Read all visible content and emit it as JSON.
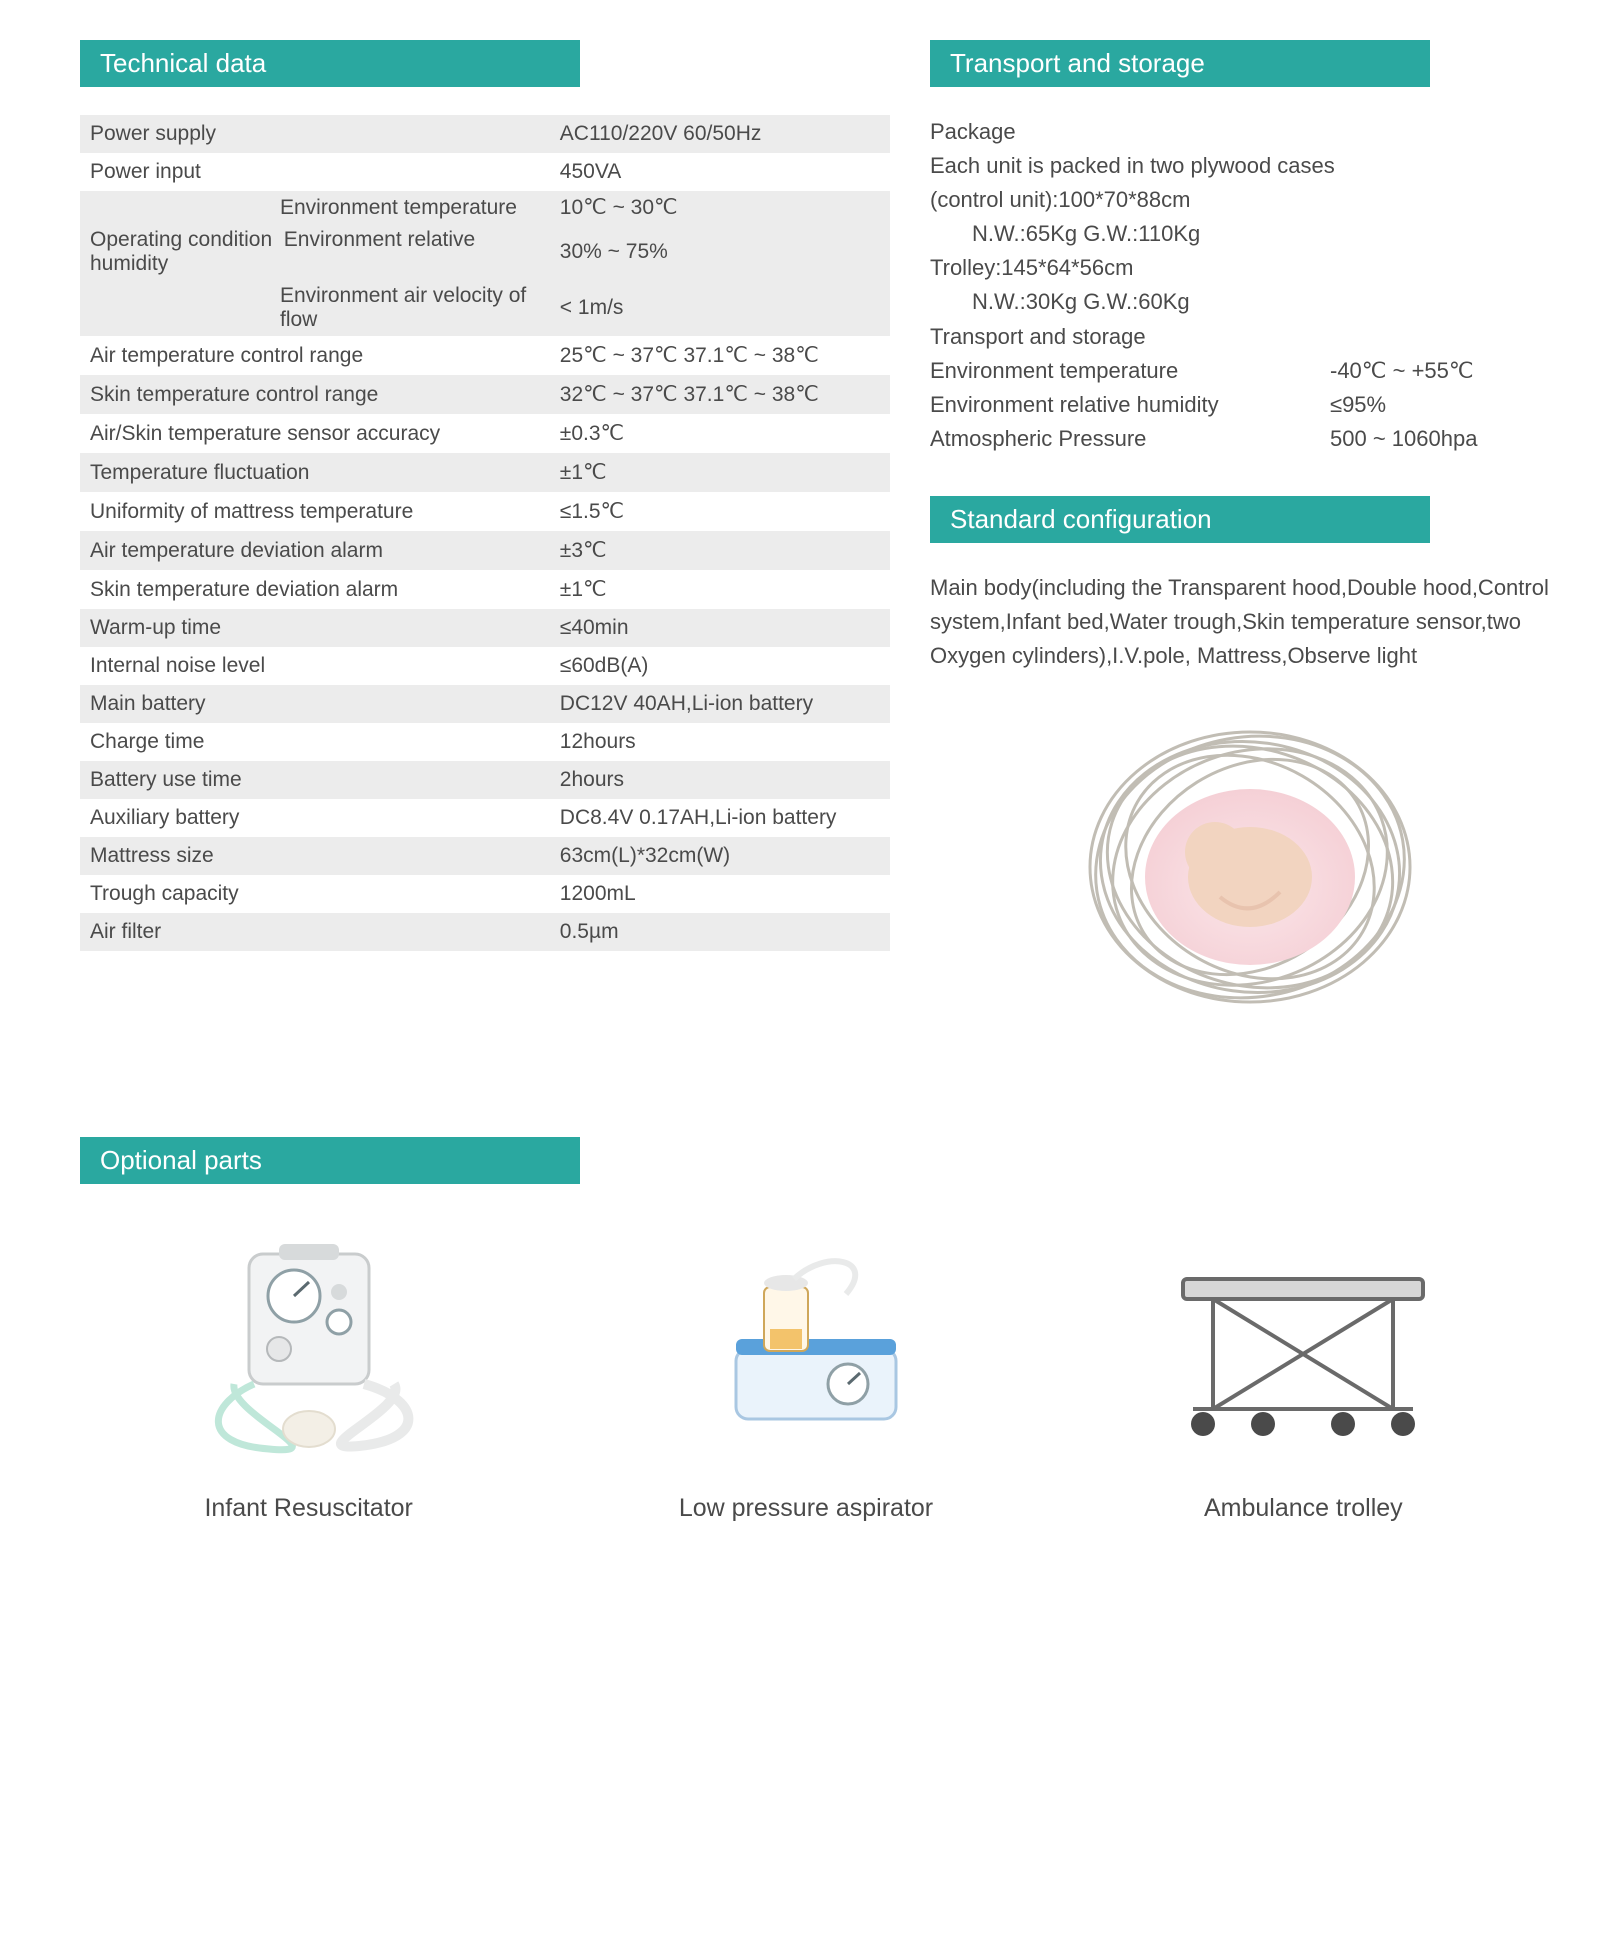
{
  "colors": {
    "header_bg": "#2aa8a0",
    "header_text": "#ffffff",
    "row_alt_bg": "#ececec",
    "text": "#4a4a4a",
    "page_bg": "#ffffff"
  },
  "technical": {
    "header": "Technical data",
    "rows": [
      {
        "label": "Power supply",
        "value": "AC110/220V  60/50Hz",
        "alt": true
      },
      {
        "label": "Power input",
        "value": "450VA",
        "alt": false
      }
    ],
    "operating_condition_label": "Operating condition",
    "operating_condition_rows": [
      {
        "sub": "Environment temperature",
        "value": "10℃ ~ 30℃"
      },
      {
        "sub": "Environment relative humidity",
        "value": "30% ~ 75%"
      },
      {
        "sub": "Environment air velocity of flow",
        "value": "< 1m/s"
      }
    ],
    "rows2": [
      {
        "label": "Air temperature control range",
        "value": "25℃ ~ 37℃  37.1℃ ~ 38℃",
        "alt": false
      },
      {
        "label": "Skin temperature control range",
        "value": "32℃ ~ 37℃  37.1℃ ~ 38℃",
        "alt": true
      },
      {
        "label": "Air/Skin temperature sensor accuracy",
        "value": "±0.3℃",
        "alt": false
      },
      {
        "label": "Temperature fluctuation",
        "value": "±1℃",
        "alt": true
      },
      {
        "label": "Uniformity of mattress temperature",
        "value": "≤1.5℃",
        "alt": false
      },
      {
        "label": "Air temperature deviation alarm",
        "value": "±3℃",
        "alt": true
      },
      {
        "label": "Skin temperature deviation alarm",
        "value": "±1℃",
        "alt": false
      },
      {
        "label": "Warm-up time",
        "value": "≤40min",
        "alt": true
      },
      {
        "label": "Internal noise level",
        "value": "≤60dB(A)",
        "alt": false
      },
      {
        "label": "Main battery",
        "value": "DC12V 40AH,Li-ion battery",
        "alt": true
      },
      {
        "label": "Charge time",
        "value": "12hours",
        "alt": false
      },
      {
        "label": "Battery use time",
        "value": "2hours",
        "alt": true
      },
      {
        "label": "Auxiliary battery",
        "value": "DC8.4V 0.17AH,Li-ion battery",
        "alt": false
      },
      {
        "label": "Mattress size",
        "value": "63cm(L)*32cm(W)",
        "alt": true
      },
      {
        "label": "Trough capacity",
        "value": "1200mL",
        "alt": false
      },
      {
        "label": "Air filter",
        "value": "0.5µm",
        "alt": true
      }
    ]
  },
  "transport": {
    "header": "Transport and storage",
    "lines": [
      "Package",
      "Each unit is packed in two plywood cases",
      "(control unit):100*70*88cm"
    ],
    "indent1": "N.W.:65Kg    G.W.:110Kg",
    "line4": "Trolley:145*64*56cm",
    "indent2": "N.W.:30Kg    G.W.:60Kg",
    "line5": "Transport and storage",
    "kv": [
      {
        "k": "Environment temperature",
        "v": "-40℃ ~ +55℃"
      },
      {
        "k": "Environment relative humidity",
        "v": "≤95%"
      },
      {
        "k": "Atmospheric Pressure",
        "v": "500 ~ 1060hpa"
      }
    ]
  },
  "standard_config": {
    "header": "Standard configuration",
    "text": "Main body(including the Transparent hood,Double hood,Control system,Infant bed,Water trough,Skin temperature sensor,two Oxygen cylinders),I.V.pole, Mattress,Observe light"
  },
  "optional": {
    "header": "Optional parts",
    "items": [
      {
        "label": "Infant Resuscitator",
        "icon": "resuscitator"
      },
      {
        "label": "Low pressure aspirator",
        "icon": "aspirator"
      },
      {
        "label": "Ambulance trolley",
        "icon": "trolley"
      }
    ]
  }
}
